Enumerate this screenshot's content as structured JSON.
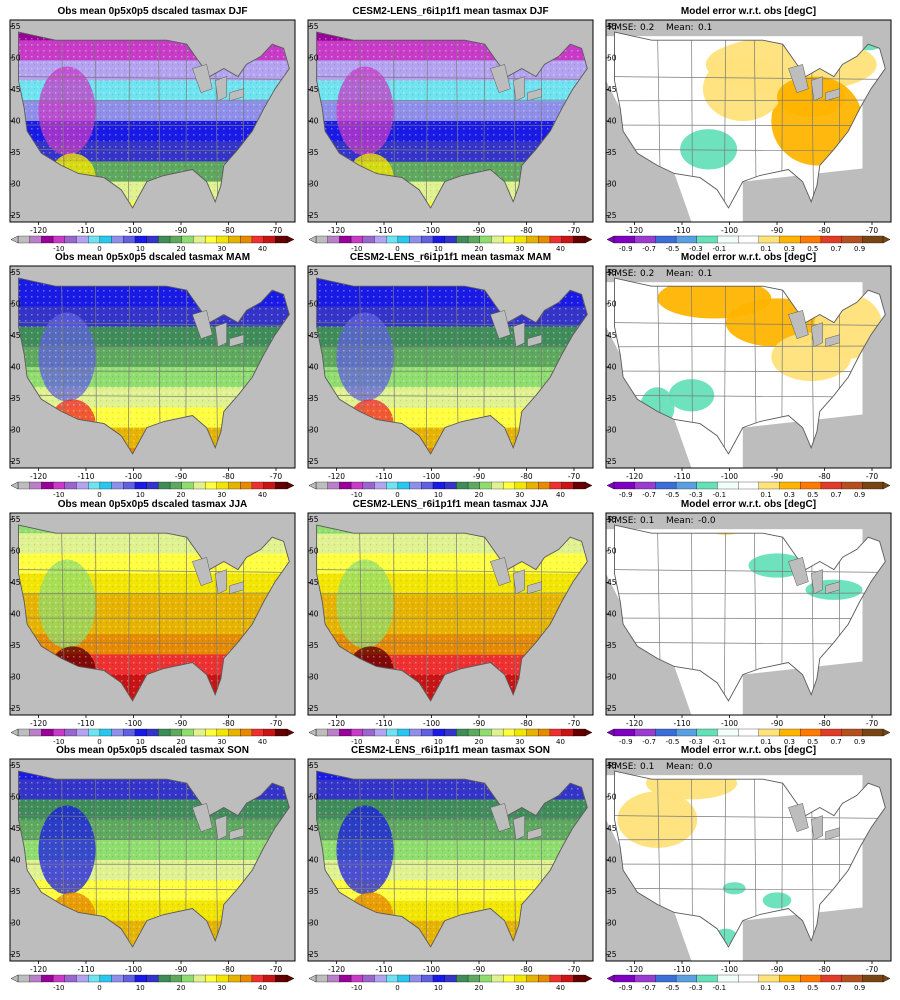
{
  "colors": {
    "ocean": "#bdbdbd",
    "lake": "#bdbdbd",
    "border": "#7a7a7a",
    "temp_scale": [
      "#bdbdbd",
      "#b97fc9",
      "#990099",
      "#c73bc7",
      "#9966cc",
      "#b3a3f0",
      "#6fe3f0",
      "#29c7f0",
      "#8f8fea",
      "#6060e0",
      "#1a1ae6",
      "#3434c8",
      "#3f8c5a",
      "#5fa85f",
      "#8fdc6f",
      "#dff28f",
      "#ffff40",
      "#f2e600",
      "#e6b400",
      "#e68a00",
      "#ee3030",
      "#c81414",
      "#640000"
    ],
    "err_scale": [
      "#8000c0",
      "#9a3cd0",
      "#3c6ed8",
      "#5aa0e0",
      "#66e0b8",
      "#f0fff8",
      "#ffffff",
      "#ffe27a",
      "#ffb400",
      "#ff7a00",
      "#e03c28",
      "#b4501e",
      "#784614"
    ]
  },
  "col_titles": {
    "obs": [
      "Obs mean 0p5x0p5 dscaled tasmax DJF",
      "Obs mean 0p5x0p5 dscaled tasmax MAM",
      "Obs mean 0p5x0p5 dscaled tasmax JJA",
      "Obs mean 0p5x0p5 dscaled tasmax SON"
    ],
    "model": [
      "CESM2-LENS_r6i1p1f1 mean tasmax DJF",
      "CESM2-LENS_r6i1p1f1 mean tasmax MAM",
      "CESM2-LENS_r6i1p1f1 mean tasmax JJA",
      "CESM2-LENS_r6i1p1f1 mean tasmax SON"
    ],
    "err": [
      "Model error w.r.t. obs [degC]",
      "Model error w.r.t. obs [degC]",
      "Model error w.r.t. obs [degC]",
      "Model error w.r.t. obs [degC]"
    ]
  },
  "stats": [
    {
      "rmse_label": "RMSE:",
      "rmse": "0.2",
      "mean_label": "Mean:",
      "mean": "0.1"
    },
    {
      "rmse_label": "RMSE:",
      "rmse": "0.2",
      "mean_label": "Mean:",
      "mean": "0.1"
    },
    {
      "rmse_label": "RMSE:",
      "rmse": "0.1",
      "mean_label": "Mean:",
      "mean": "-0.0"
    },
    {
      "rmse_label": "RMSE:",
      "rmse": "0.1",
      "mean_label": "Mean:",
      "mean": "0.0"
    }
  ],
  "axes": {
    "lon_ticks": [
      "-120",
      "-110",
      "-100",
      "-90",
      "-80",
      "-70"
    ],
    "lon_values": [
      -120,
      -110,
      -100,
      -90,
      -80,
      -70
    ],
    "lon_range": [
      -126,
      -66
    ],
    "lat_ticks": [
      "25",
      "30",
      "35",
      "40",
      "45",
      "50",
      "55"
    ],
    "lat_values": [
      25,
      30,
      35,
      40,
      45,
      50,
      55
    ],
    "lat_range": [
      24,
      56
    ]
  },
  "colorbars": {
    "temp_labels": [
      "-10",
      "0",
      "10",
      "20",
      "30",
      "40"
    ],
    "err_labels": [
      "-0.9",
      "-0.7",
      "-0.5",
      "-0.3",
      "-0.1",
      "0.1",
      "0.3",
      "0.5",
      "0.7",
      "0.9"
    ]
  },
  "seasons": [
    "DJF",
    "MAM",
    "JJA",
    "SON"
  ]
}
